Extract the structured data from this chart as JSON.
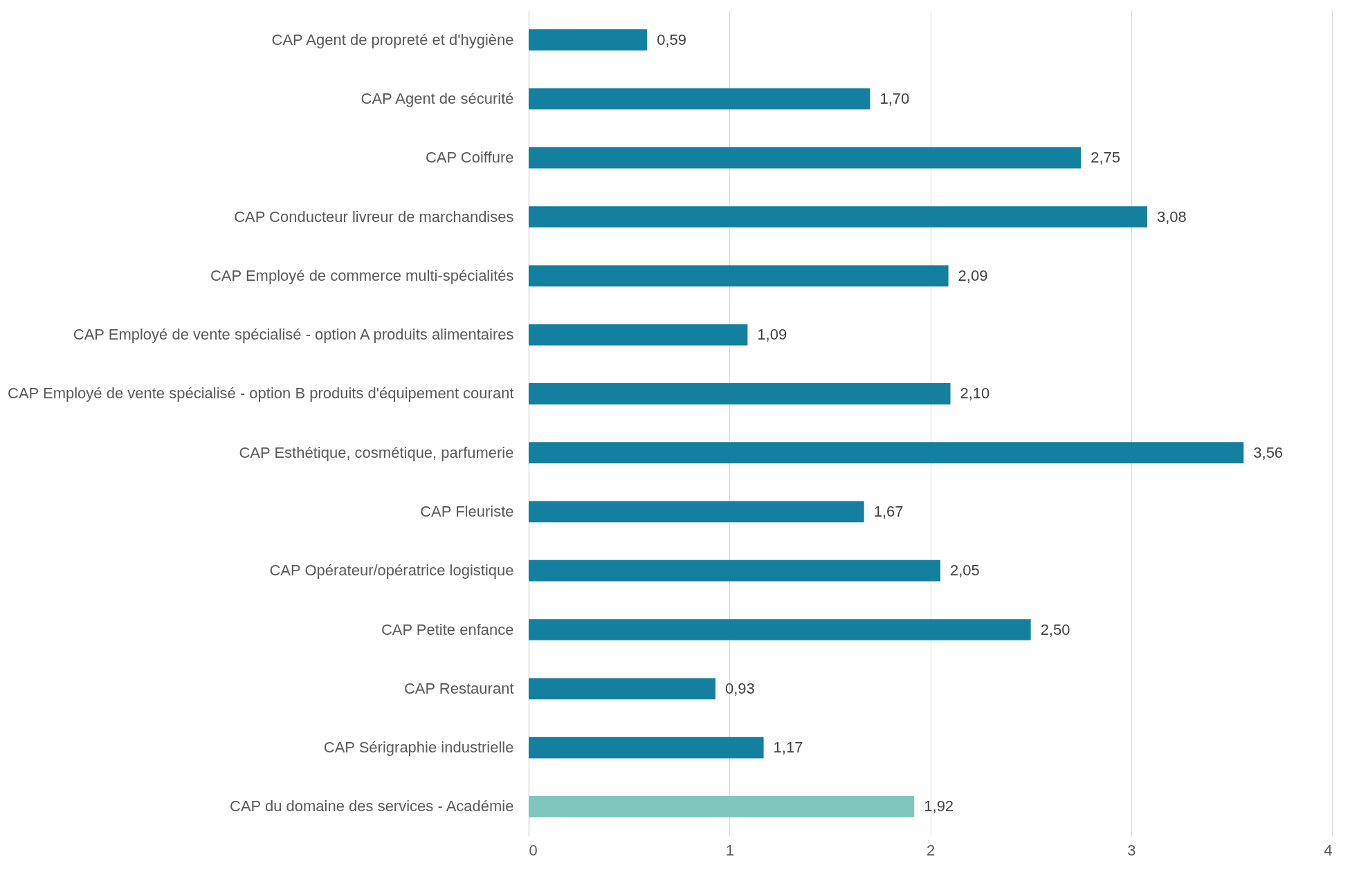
{
  "chart_data": {
    "type": "bar",
    "orientation": "horizontal",
    "categories": [
      "CAP Agent de propreté et d'hygiène",
      "CAP Agent de sécurité",
      "CAP Coiffure",
      "CAP Conducteur livreur de marchandises",
      "CAP Employé de commerce multi-spécialités",
      "CAP Employé de vente spécialisé - option A produits alimentaires",
      "CAP Employé de vente spécialisé - option B produits d'équipement courant",
      "CAP Esthétique, cosmétique, parfumerie",
      "CAP Fleuriste",
      "CAP Opérateur/opératrice logistique",
      "CAP Petite enfance",
      "CAP Restaurant",
      "CAP Sérigraphie industrielle",
      "CAP du domaine des services - Académie"
    ],
    "values": [
      0.59,
      1.7,
      2.75,
      3.08,
      2.09,
      1.09,
      2.1,
      3.56,
      1.67,
      2.05,
      2.5,
      0.93,
      1.17,
      1.92
    ],
    "value_labels": [
      "0,59",
      "1,70",
      "2,75",
      "3,08",
      "2,09",
      "1,09",
      "2,10",
      "3,56",
      "1,67",
      "2,05",
      "2,50",
      "0,93",
      "1,17",
      "1,92"
    ],
    "colors": [
      "#12809e",
      "#12809e",
      "#12809e",
      "#12809e",
      "#12809e",
      "#12809e",
      "#12809e",
      "#12809e",
      "#12809e",
      "#12809e",
      "#12809e",
      "#12809e",
      "#12809e",
      "#80c6bc"
    ],
    "xlim": [
      0,
      4
    ],
    "xticks": [
      0,
      1,
      2,
      3,
      4
    ],
    "grid": "x"
  }
}
